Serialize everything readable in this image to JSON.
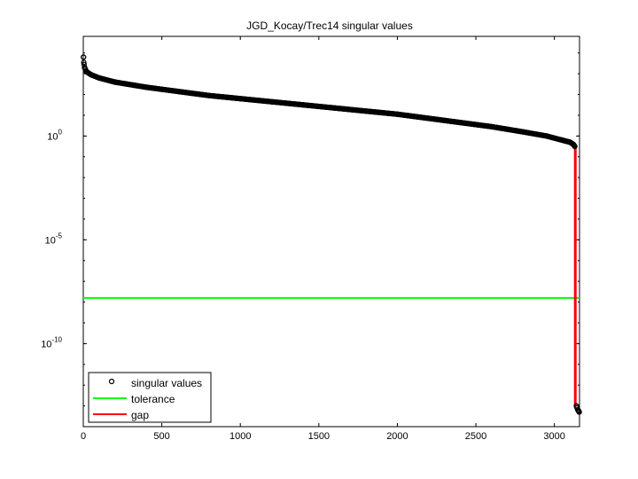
{
  "chart_data": {
    "type": "scatter",
    "title": "JGD_Kocay/Trec14 singular values",
    "xlabel": "",
    "ylabel": "",
    "y_scale": "log",
    "xlim": [
      0,
      3160
    ],
    "ylim_log10": [
      -14,
      4.8
    ],
    "x_ticks": [
      {
        "value": 0,
        "label": "0"
      },
      {
        "value": 500,
        "label": "500"
      },
      {
        "value": 1000,
        "label": "1000"
      },
      {
        "value": 1500,
        "label": "1500"
      },
      {
        "value": 2000,
        "label": "2000"
      },
      {
        "value": 2500,
        "label": "2500"
      },
      {
        "value": 3000,
        "label": "3000"
      }
    ],
    "y_ticks": [
      {
        "exponent": 0,
        "base": "10",
        "sup": "0"
      },
      {
        "exponent": -5,
        "base": "10",
        "sup": "-5"
      },
      {
        "exponent": -10,
        "base": "10",
        "sup": "-10"
      }
    ],
    "grid": false,
    "legend": {
      "position": "bottom-left",
      "entries": [
        {
          "label": "singular values",
          "marker": "circle",
          "color": "#000000"
        },
        {
          "label": "tolerance",
          "marker": "line",
          "color": "#00ff00"
        },
        {
          "label": "gap",
          "marker": "line",
          "color": "#ff0000"
        }
      ]
    },
    "series": [
      {
        "name": "singular values",
        "color": "#000000",
        "marker": "circle",
        "points_log10": [
          [
            1,
            3.8
          ],
          [
            3,
            3.55
          ],
          [
            8,
            3.3
          ],
          [
            20,
            3.1
          ],
          [
            50,
            2.95
          ],
          [
            100,
            2.8
          ],
          [
            200,
            2.6
          ],
          [
            400,
            2.35
          ],
          [
            600,
            2.15
          ],
          [
            800,
            1.95
          ],
          [
            1000,
            1.8
          ],
          [
            1200,
            1.65
          ],
          [
            1400,
            1.5
          ],
          [
            1600,
            1.35
          ],
          [
            1800,
            1.2
          ],
          [
            2000,
            1.05
          ],
          [
            2200,
            0.85
          ],
          [
            2400,
            0.65
          ],
          [
            2600,
            0.45
          ],
          [
            2800,
            0.2
          ],
          [
            2950,
            0.0
          ],
          [
            3050,
            -0.2
          ],
          [
            3100,
            -0.3
          ],
          [
            3120,
            -0.4
          ],
          [
            3130,
            -0.5
          ],
          [
            3140,
            -13.0
          ],
          [
            3145,
            -13.1
          ],
          [
            3150,
            -13.2
          ],
          [
            3155,
            -13.25
          ],
          [
            3158,
            -13.3
          ]
        ]
      },
      {
        "name": "tolerance",
        "color": "#00ff00",
        "y_log10": -7.8
      },
      {
        "name": "gap",
        "color": "#ff0000",
        "x": 3133,
        "from_log10": -0.5,
        "to_log10": -13.0
      }
    ]
  }
}
